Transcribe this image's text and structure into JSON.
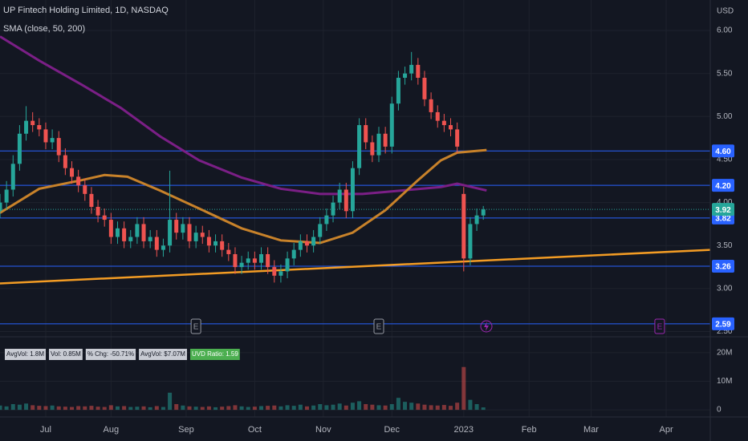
{
  "chart_data": {
    "type": "candlestick",
    "title": "UP Fintech Holding Limited, 1D, NASDAQ",
    "subtitle": "SMA (close, 50, 200)",
    "currency": "USD",
    "up_color": "#26a69a",
    "down_color": "#ef5350",
    "x": [
      0,
      2,
      4,
      6,
      8,
      10,
      12,
      14,
      16,
      18,
      20,
      22,
      24,
      26,
      28,
      30,
      32,
      34,
      36,
      38,
      40,
      42,
      44,
      46,
      48,
      50,
      52,
      54,
      56,
      58,
      60,
      62,
      64,
      66,
      68,
      70,
      72,
      74,
      76,
      78,
      80,
      82,
      84,
      86,
      88,
      90,
      92,
      94,
      96,
      98,
      100,
      102,
      104,
      106,
      108,
      110,
      112,
      114,
      116,
      118,
      120,
      122,
      124,
      126,
      128,
      130,
      132,
      134,
      136,
      138,
      140,
      142,
      144,
      146,
      148
    ],
    "open": [
      3.9,
      4.0,
      4.15,
      4.45,
      4.8,
      4.95,
      4.9,
      4.85,
      4.7,
      4.75,
      4.55,
      4.4,
      4.3,
      4.2,
      4.1,
      3.95,
      3.85,
      3.8,
      3.6,
      3.7,
      3.55,
      3.6,
      3.75,
      3.55,
      3.6,
      3.45,
      3.5,
      3.8,
      3.65,
      3.75,
      3.55,
      3.65,
      3.6,
      3.5,
      3.55,
      3.45,
      3.4,
      3.25,
      3.3,
      3.35,
      3.3,
      3.4,
      3.25,
      3.15,
      3.2,
      3.35,
      3.45,
      3.55,
      3.5,
      3.6,
      3.75,
      3.85,
      4.0,
      4.15,
      3.9,
      4.4,
      4.9,
      4.7,
      4.55,
      4.8,
      4.65,
      5.15,
      5.45,
      5.5,
      5.6,
      5.45,
      5.2,
      5.05,
      4.95,
      4.9,
      4.85,
      4.1,
      3.35,
      3.75,
      3.85
    ],
    "high": [
      4.1,
      4.25,
      4.55,
      4.9,
      5.12,
      5.05,
      4.98,
      4.93,
      4.85,
      4.83,
      4.63,
      4.48,
      4.38,
      4.28,
      4.18,
      4.03,
      3.93,
      3.88,
      3.78,
      3.78,
      3.68,
      3.83,
      3.83,
      3.68,
      3.68,
      3.58,
      4.37,
      3.88,
      3.83,
      3.83,
      3.73,
      3.73,
      3.68,
      3.63,
      3.63,
      3.53,
      3.48,
      3.38,
      3.43,
      3.43,
      3.48,
      3.48,
      3.33,
      3.28,
      3.43,
      3.53,
      3.63,
      3.63,
      3.68,
      3.83,
      3.93,
      4.08,
      4.23,
      4.23,
      4.48,
      4.98,
      4.98,
      4.78,
      4.88,
      4.88,
      5.23,
      5.53,
      5.58,
      5.75,
      5.68,
      5.53,
      5.28,
      5.13,
      5.03,
      4.98,
      4.93,
      4.18,
      3.83,
      3.93,
      3.96
    ],
    "low": [
      3.82,
      3.92,
      4.07,
      4.37,
      4.72,
      4.82,
      4.77,
      4.62,
      4.62,
      4.47,
      4.32,
      4.22,
      4.12,
      4.02,
      3.87,
      3.77,
      3.72,
      3.52,
      3.52,
      3.47,
      3.47,
      3.52,
      3.47,
      3.47,
      3.37,
      3.37,
      3.42,
      3.57,
      3.57,
      3.47,
      3.47,
      3.52,
      3.42,
      3.42,
      3.37,
      3.32,
      3.17,
      3.17,
      3.22,
      3.22,
      3.22,
      3.17,
      3.07,
      3.07,
      3.12,
      3.27,
      3.37,
      3.42,
      3.42,
      3.52,
      3.67,
      3.77,
      3.92,
      3.82,
      3.82,
      4.32,
      4.62,
      4.47,
      4.47,
      4.57,
      4.57,
      5.07,
      5.37,
      5.42,
      5.37,
      5.12,
      4.97,
      4.87,
      4.82,
      4.77,
      4.57,
      3.2,
      3.27,
      3.67,
      3.8
    ],
    "close": [
      4.0,
      4.15,
      4.45,
      4.8,
      4.95,
      4.9,
      4.85,
      4.7,
      4.75,
      4.55,
      4.4,
      4.3,
      4.2,
      4.1,
      3.95,
      3.85,
      3.8,
      3.6,
      3.7,
      3.55,
      3.6,
      3.75,
      3.55,
      3.6,
      3.45,
      3.5,
      3.8,
      3.65,
      3.75,
      3.55,
      3.65,
      3.6,
      3.5,
      3.55,
      3.45,
      3.4,
      3.25,
      3.3,
      3.35,
      3.3,
      3.4,
      3.25,
      3.15,
      3.2,
      3.35,
      3.45,
      3.55,
      3.5,
      3.6,
      3.75,
      3.85,
      4.0,
      4.15,
      3.9,
      4.4,
      4.9,
      4.7,
      4.55,
      4.8,
      4.65,
      5.15,
      5.45,
      5.5,
      5.6,
      5.45,
      5.2,
      5.05,
      4.95,
      4.9,
      4.85,
      4.65,
      3.35,
      3.75,
      3.85,
      3.92
    ],
    "volume": [
      1.5,
      1.2,
      2.0,
      1.8,
      2.2,
      1.6,
      1.4,
      1.3,
      1.5,
      1.2,
      1.1,
      1.0,
      1.3,
      1.2,
      1.4,
      1.1,
      1.0,
      1.6,
      1.2,
      1.3,
      1.0,
      1.1,
      1.2,
      0.9,
      1.3,
      1.0,
      6.0,
      2.0,
      1.5,
      1.2,
      1.1,
      1.0,
      1.2,
      0.9,
      1.1,
      1.3,
      1.6,
      1.2,
      1.0,
      1.1,
      1.3,
      1.4,
      1.5,
      1.2,
      1.6,
      1.4,
      1.8,
      1.2,
      1.5,
      2.0,
      1.6,
      1.8,
      2.2,
      1.5,
      2.5,
      3.0,
      2.0,
      1.8,
      1.6,
      1.5,
      2.0,
      4.2,
      2.8,
      2.5,
      2.2,
      1.8,
      1.6,
      1.5,
      1.7,
      1.4,
      2.5,
      15.0,
      3.5,
      2.0,
      0.85
    ],
    "sma50": {
      "color": "#c8822a",
      "x": [
        0,
        12,
        25,
        32,
        39,
        49,
        61,
        74,
        86,
        98,
        108,
        118,
        128,
        135,
        140,
        149
      ],
      "values": [
        3.88,
        4.16,
        4.26,
        4.32,
        4.3,
        4.14,
        3.93,
        3.7,
        3.56,
        3.53,
        3.65,
        3.91,
        4.26,
        4.49,
        4.58,
        4.61
      ]
    },
    "sma200": {
      "color": "#7b1f86",
      "x": [
        0,
        12,
        25,
        37,
        49,
        61,
        74,
        86,
        98,
        111,
        123,
        135,
        140,
        149
      ],
      "values": [
        5.93,
        5.65,
        5.37,
        5.1,
        4.77,
        4.49,
        4.29,
        4.16,
        4.1,
        4.1,
        4.14,
        4.18,
        4.22,
        4.14
      ]
    },
    "trend_line": {
      "color": "#f39c24",
      "x": [
        0,
        217.5
      ],
      "values": [
        3.06,
        3.45
      ]
    },
    "levels": [
      {
        "value": 4.6,
        "label": "4.60"
      },
      {
        "value": 4.2,
        "label": "4.20"
      },
      3.82,
      3.26,
      2.59
    ],
    "level_color": "#2962ff",
    "last_price": 3.92,
    "events": [
      {
        "x": 60,
        "label": "E",
        "color": "#9598a1"
      },
      {
        "x": 116,
        "label": "E",
        "color": "#9598a1"
      },
      {
        "x": 202,
        "label": "E",
        "color": "#9c27b0"
      }
    ],
    "indicator_labels": [
      "AvgVol: 1.8M",
      "Vol: 0.85M",
      "% Chg: -50.71%",
      "AvgVol: $7.07M",
      "UVD Ratio: 1.59"
    ],
    "xlim": [
      0,
      217.5
    ],
    "xticks": [
      {
        "value": 14,
        "label": "Jul"
      },
      {
        "value": 34,
        "label": "Aug"
      },
      {
        "value": 57,
        "label": "Sep"
      },
      {
        "value": 78,
        "label": "Oct"
      },
      {
        "value": 99,
        "label": "Nov"
      },
      {
        "value": 120,
        "label": "Dec"
      },
      {
        "value": 142,
        "label": "2023"
      },
      {
        "value": 162,
        "label": "Feb"
      },
      {
        "value": 181,
        "label": "Mar"
      },
      {
        "value": 204,
        "label": "Apr"
      }
    ],
    "ylim": [
      2.44,
      6.354
    ],
    "yticks": [
      {
        "value": 6,
        "label": "6.00"
      },
      {
        "value": 5.5,
        "label": "5.50"
      },
      {
        "value": 5,
        "label": "5.00"
      },
      {
        "value": 4.5,
        "label": "4.50"
      },
      {
        "value": 4,
        "label": "4.00"
      },
      {
        "value": 3.5,
        "label": "3.50"
      },
      {
        "value": 3,
        "label": "3.00"
      },
      {
        "value": 2.5,
        "label": "2.50"
      }
    ],
    "vlim": [
      -2.5,
      25.6
    ],
    "vticks": [
      {
        "value": 20,
        "label": "20M"
      },
      {
        "value": 10,
        "label": "10M"
      },
      0
    ],
    "grid": true
  }
}
